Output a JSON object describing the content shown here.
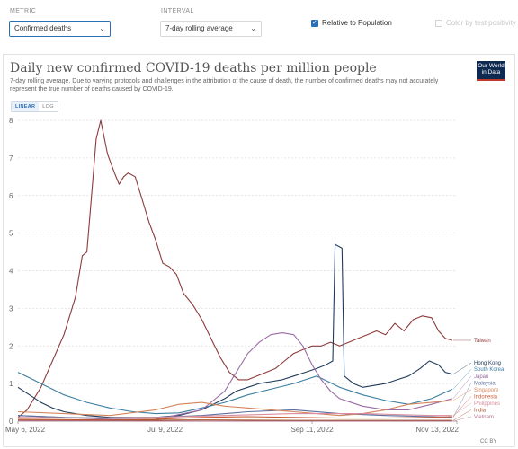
{
  "controls": {
    "metric_label": "METRIC",
    "metric_value": "Confirmed deaths",
    "interval_label": "INTERVAL",
    "interval_value": "7-day rolling average",
    "relative_label": "Relative to Population",
    "relative_checked": true,
    "color_label": "Color by test positivity",
    "color_checked": false
  },
  "logo": {
    "line1": "Our World",
    "line2": "in Data"
  },
  "scale": {
    "linear": "LINEAR",
    "log": "LOG"
  },
  "footer": {
    "license": "CC BY"
  },
  "chart_data": {
    "type": "line",
    "title": "Daily new confirmed COVID-19 deaths per million people",
    "subtitle": "7-day rolling average. Due to varying protocols and challenges in the attribution of the cause of death, the number of confirmed deaths may not accurately represent the true number of deaths caused by COVID-19.",
    "xlabel": "",
    "ylabel": "",
    "x_ticks": [
      "May 6, 2022",
      "Jul 9, 2022",
      "Sep 11, 2022",
      "Nov 13, 2022"
    ],
    "x_tick_days": [
      0,
      64,
      128,
      191
    ],
    "xlim_days": [
      0,
      191
    ],
    "ylim": [
      0,
      8
    ],
    "y_ticks": [
      0,
      1,
      2,
      3,
      4,
      5,
      6,
      7,
      8
    ],
    "grid": true,
    "series": [
      {
        "name": "Taiwan",
        "color": "#8c3a3a",
        "points": [
          [
            0,
            0.1
          ],
          [
            4,
            0.3
          ],
          [
            10,
            0.9
          ],
          [
            15,
            1.6
          ],
          [
            20,
            2.3
          ],
          [
            25,
            3.3
          ],
          [
            28,
            4.4
          ],
          [
            30,
            4.5
          ],
          [
            32,
            6.0
          ],
          [
            34,
            7.5
          ],
          [
            36,
            8.0
          ],
          [
            39,
            7.1
          ],
          [
            42,
            6.6
          ],
          [
            44,
            6.3
          ],
          [
            46,
            6.5
          ],
          [
            48,
            6.6
          ],
          [
            51,
            6.5
          ],
          [
            54,
            5.9
          ],
          [
            57,
            5.3
          ],
          [
            60,
            4.8
          ],
          [
            63,
            4.2
          ],
          [
            66,
            4.1
          ],
          [
            69,
            3.9
          ],
          [
            72,
            3.4
          ],
          [
            76,
            3.1
          ],
          [
            80,
            2.7
          ],
          [
            84,
            2.2
          ],
          [
            88,
            1.7
          ],
          [
            92,
            1.3
          ],
          [
            96,
            1.1
          ],
          [
            100,
            1.1
          ],
          [
            104,
            1.2
          ],
          [
            108,
            1.3
          ],
          [
            112,
            1.4
          ],
          [
            116,
            1.6
          ],
          [
            120,
            1.8
          ],
          [
            124,
            1.9
          ],
          [
            128,
            2.0
          ],
          [
            132,
            2.0
          ],
          [
            136,
            2.1
          ],
          [
            140,
            2.0
          ],
          [
            144,
            2.1
          ],
          [
            148,
            2.2
          ],
          [
            152,
            2.3
          ],
          [
            156,
            2.4
          ],
          [
            160,
            2.3
          ],
          [
            164,
            2.6
          ],
          [
            168,
            2.4
          ],
          [
            172,
            2.7
          ],
          [
            176,
            2.8
          ],
          [
            180,
            2.75
          ],
          [
            183,
            2.4
          ],
          [
            186,
            2.2
          ],
          [
            189,
            2.15
          ]
        ]
      },
      {
        "name": "Hong Kong",
        "color": "#1f3b5a",
        "points": [
          [
            0,
            0.9
          ],
          [
            5,
            0.7
          ],
          [
            10,
            0.5
          ],
          [
            15,
            0.35
          ],
          [
            20,
            0.25
          ],
          [
            30,
            0.15
          ],
          [
            40,
            0.1
          ],
          [
            50,
            0.1
          ],
          [
            60,
            0.1
          ],
          [
            70,
            0.15
          ],
          [
            80,
            0.3
          ],
          [
            90,
            0.6
          ],
          [
            95,
            0.8
          ],
          [
            100,
            0.9
          ],
          [
            105,
            1.0
          ],
          [
            110,
            1.05
          ],
          [
            115,
            1.1
          ],
          [
            120,
            1.2
          ],
          [
            125,
            1.3
          ],
          [
            130,
            1.4
          ],
          [
            134,
            1.5
          ],
          [
            137,
            1.6
          ],
          [
            138,
            4.7
          ],
          [
            141,
            4.6
          ],
          [
            142,
            1.2
          ],
          [
            146,
            1.0
          ],
          [
            150,
            0.9
          ],
          [
            155,
            0.95
          ],
          [
            160,
            1.0
          ],
          [
            165,
            1.1
          ],
          [
            170,
            1.2
          ],
          [
            175,
            1.4
          ],
          [
            179,
            1.6
          ],
          [
            183,
            1.5
          ],
          [
            186,
            1.3
          ],
          [
            189,
            1.25
          ]
        ]
      },
      {
        "name": "South Korea",
        "color": "#3b7ea1",
        "points": [
          [
            0,
            1.3
          ],
          [
            5,
            1.15
          ],
          [
            10,
            1.0
          ],
          [
            15,
            0.85
          ],
          [
            20,
            0.7
          ],
          [
            25,
            0.6
          ],
          [
            30,
            0.5
          ],
          [
            40,
            0.35
          ],
          [
            50,
            0.25
          ],
          [
            60,
            0.2
          ],
          [
            70,
            0.22
          ],
          [
            80,
            0.35
          ],
          [
            90,
            0.5
          ],
          [
            100,
            0.7
          ],
          [
            110,
            0.85
          ],
          [
            120,
            1.0
          ],
          [
            125,
            1.1
          ],
          [
            130,
            1.2
          ],
          [
            135,
            1.05
          ],
          [
            140,
            0.9
          ],
          [
            150,
            0.7
          ],
          [
            160,
            0.55
          ],
          [
            170,
            0.45
          ],
          [
            180,
            0.6
          ],
          [
            189,
            0.85
          ]
        ]
      },
      {
        "name": "Japan",
        "color": "#9a6aa5",
        "points": [
          [
            0,
            0.15
          ],
          [
            20,
            0.1
          ],
          [
            40,
            0.05
          ],
          [
            60,
            0.05
          ],
          [
            80,
            0.3
          ],
          [
            90,
            0.8
          ],
          [
            95,
            1.3
          ],
          [
            100,
            1.8
          ],
          [
            105,
            2.1
          ],
          [
            110,
            2.3
          ],
          [
            115,
            2.35
          ],
          [
            120,
            2.3
          ],
          [
            124,
            2.0
          ],
          [
            128,
            1.5
          ],
          [
            132,
            1.1
          ],
          [
            136,
            0.8
          ],
          [
            140,
            0.6
          ],
          [
            150,
            0.4
          ],
          [
            160,
            0.3
          ],
          [
            170,
            0.3
          ],
          [
            180,
            0.45
          ],
          [
            189,
            0.6
          ]
        ]
      },
      {
        "name": "Malaysia",
        "color": "#5c6f9e",
        "points": [
          [
            0,
            0.15
          ],
          [
            20,
            0.1
          ],
          [
            40,
            0.08
          ],
          [
            60,
            0.1
          ],
          [
            80,
            0.15
          ],
          [
            100,
            0.25
          ],
          [
            120,
            0.3
          ],
          [
            140,
            0.2
          ],
          [
            160,
            0.15
          ],
          [
            180,
            0.12
          ],
          [
            189,
            0.1
          ]
        ]
      },
      {
        "name": "Singapore",
        "color": "#d4845b",
        "points": [
          [
            0,
            0.25
          ],
          [
            20,
            0.2
          ],
          [
            40,
            0.15
          ],
          [
            60,
            0.3
          ],
          [
            70,
            0.45
          ],
          [
            80,
            0.5
          ],
          [
            90,
            0.4
          ],
          [
            100,
            0.35
          ],
          [
            110,
            0.3
          ],
          [
            120,
            0.25
          ],
          [
            130,
            0.2
          ],
          [
            140,
            0.15
          ],
          [
            150,
            0.2
          ],
          [
            160,
            0.3
          ],
          [
            170,
            0.45
          ],
          [
            180,
            0.5
          ],
          [
            189,
            0.55
          ]
        ]
      },
      {
        "name": "Indonesia",
        "color": "#c85a3a",
        "points": [
          [
            0,
            0.05
          ],
          [
            40,
            0.03
          ],
          [
            60,
            0.05
          ],
          [
            80,
            0.1
          ],
          [
            100,
            0.12
          ],
          [
            120,
            0.1
          ],
          [
            140,
            0.08
          ],
          [
            160,
            0.08
          ],
          [
            180,
            0.1
          ],
          [
            189,
            0.12
          ]
        ]
      },
      {
        "name": "Philippines",
        "color": "#d98c9f",
        "points": [
          [
            0,
            0.1
          ],
          [
            30,
            0.08
          ],
          [
            60,
            0.1
          ],
          [
            90,
            0.15
          ],
          [
            120,
            0.2
          ],
          [
            150,
            0.2
          ],
          [
            180,
            0.15
          ],
          [
            189,
            0.15
          ]
        ]
      },
      {
        "name": "India",
        "color": "#a0522d",
        "points": [
          [
            0,
            0.02
          ],
          [
            40,
            0.02
          ],
          [
            80,
            0.03
          ],
          [
            120,
            0.02
          ],
          [
            160,
            0.02
          ],
          [
            189,
            0.02
          ]
        ]
      },
      {
        "name": "Vietnam",
        "color": "#b0708a",
        "points": [
          [
            0,
            0.01
          ],
          [
            60,
            0.0
          ],
          [
            120,
            0.0
          ],
          [
            189,
            0.0
          ]
        ]
      }
    ],
    "series_label_y": [
      2.15,
      1.55,
      1.38,
      1.2,
      1.02,
      0.84,
      0.66,
      0.48,
      0.3,
      0.12
    ]
  }
}
